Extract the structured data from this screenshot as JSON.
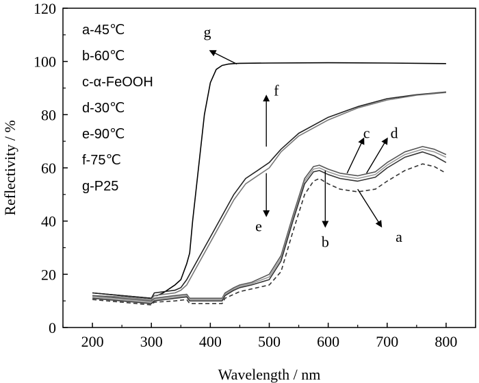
{
  "chart_data": {
    "type": "line",
    "xlabel": "Wavelength / nm",
    "ylabel": "Reflectivity / %",
    "xlim": [
      150,
      850
    ],
    "ylim": [
      0,
      120
    ],
    "xticks": [
      200,
      300,
      400,
      500,
      600,
      700,
      800
    ],
    "yticks": [
      0,
      20,
      40,
      60,
      80,
      100,
      120
    ],
    "grid": false,
    "legend": {
      "placement": "top-left",
      "entries": [
        "a-45℃",
        "b-60℃",
        "c-α-FeOOH",
        "d-30℃",
        "e-90℃",
        "f-75℃",
        "g-P25"
      ]
    },
    "series": [
      {
        "name": "g-P25",
        "color": "#000000",
        "dash": "",
        "x": [
          200,
          250,
          300,
          305,
          310,
          320,
          340,
          350,
          360,
          365,
          370,
          380,
          390,
          400,
          410,
          420,
          430,
          440,
          450,
          500,
          600,
          700,
          800
        ],
        "y": [
          13,
          12,
          11,
          12,
          12,
          13,
          16,
          18,
          24,
          28,
          40,
          60,
          80,
          92,
          97,
          98.5,
          99,
          99.2,
          99.3,
          99.4,
          99.5,
          99.4,
          99.2
        ]
      },
      {
        "name": "f-75℃",
        "color": "#222222",
        "dash": "",
        "x": [
          200,
          250,
          300,
          305,
          340,
          350,
          360,
          365,
          380,
          400,
          420,
          440,
          460,
          480,
          500,
          520,
          550,
          600,
          650,
          700,
          750,
          800
        ],
        "y": [
          13,
          12,
          11,
          13,
          14,
          15,
          18,
          20,
          26,
          34,
          42,
          50,
          56,
          59,
          62,
          67,
          73,
          79,
          83,
          86,
          87.5,
          88.5
        ]
      },
      {
        "name": "e-90℃",
        "color": "#777777",
        "dash": "",
        "x": [
          200,
          250,
          300,
          305,
          340,
          350,
          360,
          365,
          380,
          400,
          420,
          440,
          460,
          480,
          500,
          520,
          550,
          600,
          650,
          700,
          750,
          800
        ],
        "y": [
          12,
          11.5,
          10.5,
          12,
          13,
          14,
          16,
          18,
          24,
          32,
          40,
          48,
          54,
          57,
          60,
          66,
          72,
          78,
          82.5,
          85.5,
          87.3,
          88.3
        ]
      },
      {
        "name": "c-α-FeOOH",
        "color": "#555555",
        "dash": "",
        "x": [
          200,
          250,
          300,
          305,
          340,
          360,
          365,
          420,
          425,
          440,
          450,
          470,
          500,
          520,
          540,
          560,
          575,
          585,
          600,
          620,
          650,
          680,
          700,
          730,
          760,
          780,
          800
        ],
        "y": [
          12,
          11,
          10,
          11,
          12,
          12.5,
          11,
          11,
          13,
          15,
          16,
          17,
          20,
          27,
          42,
          56,
          60.5,
          61,
          59.5,
          58,
          57,
          58.5,
          62,
          66,
          68,
          67,
          65
        ]
      },
      {
        "name": "d-30℃",
        "color": "#999999",
        "dash": "",
        "x": [
          200,
          250,
          300,
          305,
          340,
          360,
          365,
          420,
          425,
          440,
          450,
          470,
          500,
          520,
          540,
          560,
          575,
          585,
          600,
          620,
          650,
          680,
          700,
          730,
          760,
          780,
          800
        ],
        "y": [
          11.5,
          10.5,
          9.5,
          10.5,
          11.5,
          12,
          10.5,
          10.5,
          12.5,
          14.5,
          15.5,
          16.5,
          19,
          26,
          41,
          55,
          59.5,
          60,
          58.5,
          57,
          56,
          57.5,
          61,
          65,
          67,
          66,
          64
        ]
      },
      {
        "name": "b-60℃",
        "color": "#333333",
        "dash": "",
        "x": [
          200,
          250,
          300,
          305,
          340,
          360,
          365,
          420,
          425,
          440,
          450,
          470,
          500,
          520,
          540,
          560,
          575,
          585,
          600,
          620,
          650,
          680,
          700,
          730,
          760,
          780,
          800
        ],
        "y": [
          11,
          10,
          9,
          10,
          11,
          11.5,
          10,
          10,
          12,
          14,
          15,
          16,
          18,
          25,
          40,
          54,
          58.5,
          59,
          57.5,
          56,
          55,
          56.5,
          60,
          64,
          66,
          64.5,
          62
        ]
      },
      {
        "name": "a-45℃",
        "color": "#333333",
        "dash": "6,4",
        "x": [
          200,
          250,
          300,
          305,
          340,
          360,
          365,
          420,
          425,
          440,
          450,
          470,
          500,
          520,
          540,
          560,
          575,
          585,
          600,
          620,
          650,
          680,
          700,
          730,
          760,
          780,
          800
        ],
        "y": [
          10.5,
          9.5,
          8.5,
          9.5,
          10,
          10.5,
          9,
          9,
          11,
          12.5,
          13.5,
          14.5,
          16,
          21,
          36,
          50,
          55,
          56,
          54,
          52,
          51,
          52,
          55,
          59,
          61.5,
          60.5,
          58
        ]
      }
    ],
    "annotations": [
      {
        "label": "g",
        "anchor": [
          445,
          99
        ],
        "tip": [
          400,
          104
        ],
        "text_at": [
          395,
          111
        ]
      },
      {
        "label": "f",
        "anchor": [
          495,
          68
        ],
        "tip": [
          495,
          87
        ],
        "text_at": [
          512,
          89
        ]
      },
      {
        "label": "e",
        "anchor": [
          495,
          58
        ],
        "tip": [
          495,
          42
        ],
        "text_at": [
          482,
          38
        ]
      },
      {
        "label": "c",
        "anchor": [
          632,
          58
        ],
        "tip": [
          660,
          71
        ],
        "text_at": [
          665,
          73
        ]
      },
      {
        "label": "d",
        "anchor": [
          665,
          58
        ],
        "tip": [
          700,
          71
        ],
        "text_at": [
          712,
          73
        ]
      },
      {
        "label": "b",
        "anchor": [
          595,
          59
        ],
        "tip": [
          595,
          38
        ],
        "text_at": [
          595,
          32
        ]
      },
      {
        "label": "a",
        "anchor": [
          650,
          52
        ],
        "tip": [
          690,
          38
        ],
        "text_at": [
          720,
          34
        ]
      }
    ]
  }
}
